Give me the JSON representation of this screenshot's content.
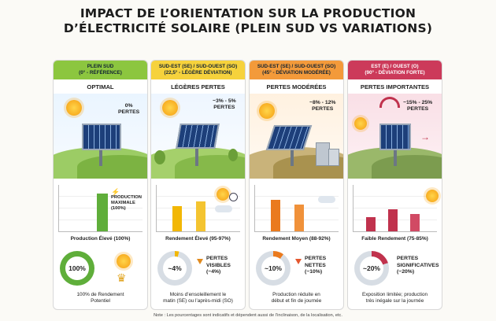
{
  "title": {
    "line1": "IMPACT DE L’ORIENTATION SUR LA PRODUCTION",
    "line2": "D’ÉLECTRICITÉ SOLAIRE (PLEIN SUD VS VARIATIONS)"
  },
  "columns": [
    {
      "head_line1": "PLEIN SUD",
      "head_line2": "(0° - RÉFÉRENCE)",
      "subtitle": "OPTIMAL",
      "loss_line1": "0%",
      "loss_line2": "PERTES",
      "chart_caption": "Production Élevé (100%)",
      "chart_note_line1": "PRODUCTION",
      "chart_note_line2": "MAXIMALE",
      "chart_note_line3": "(100%)",
      "donut_value": "100%",
      "donut_label_line1": "",
      "donut_label_line2": "",
      "foot_line1": "100% de Rendement",
      "foot_line2": "Potentiel",
      "color": "#5fae3a",
      "head_bg": "#8cc63f"
    },
    {
      "head_line1": "SUD-EST (SE) / SUD-OUEST (SO)",
      "head_line2": "(22,5° - LÉGÈRE DÉVIATION)",
      "subtitle": "LÉGÈRES PERTES",
      "loss_line1": "~3% - 5%",
      "loss_line2": "PERTES",
      "chart_caption": "Rendement Élevé (95-97%)",
      "donut_value": "~4%",
      "donut_label_line1": "PERTES",
      "donut_label_line2": "VISIBLES",
      "donut_label_line3": "(~4%)",
      "foot_line1": "Moins d’ensoleillement le",
      "foot_line2": "matin (SE) ou l’après-midi (SO)",
      "color": "#f2b705",
      "head_bg": "#f6d23c"
    },
    {
      "head_line1": "SUD-EST (SE) / SUD-OUEST (SO)",
      "head_line2": "(45° - DÉVIATION MODÉRÉE)",
      "subtitle": "PERTES MODÉRÉES",
      "loss_line1": "~8% - 12%",
      "loss_line2": "PERTES",
      "chart_caption": "Rendement Moyen (88-92%)",
      "donut_value": "~10%",
      "donut_label_line1": "PERTES",
      "donut_label_line2": "NETTES",
      "donut_label_line3": "(~10%)",
      "foot_line1": "Production réduite en",
      "foot_line2": "début et fin de journée",
      "color": "#ea7a1e",
      "head_bg": "#f39a3a"
    },
    {
      "head_line1": "EST (E) / OUEST (O)",
      "head_line2": "(90° - DÉVIATION FORTE)",
      "subtitle": "PERTES IMPORTANTES",
      "loss_line1": "~15% - 25%",
      "loss_line2": "PERTES",
      "chart_caption": "Faible Rendement (75-85%)",
      "donut_value": "~20%",
      "donut_label_line1": "PERTES",
      "donut_label_line2": "SIGNIFICATIVES",
      "donut_label_line3": "(~20%)",
      "foot_line1": "Exposition limitée; production",
      "foot_line2": "très inégale sur la journée",
      "color": "#c0324d",
      "head_bg": "#cc3a5a"
    }
  ],
  "note": "Note : Les pourcentages sont indicatifs et dépendent aussi de l’inclinaison, de la localisation, etc."
}
